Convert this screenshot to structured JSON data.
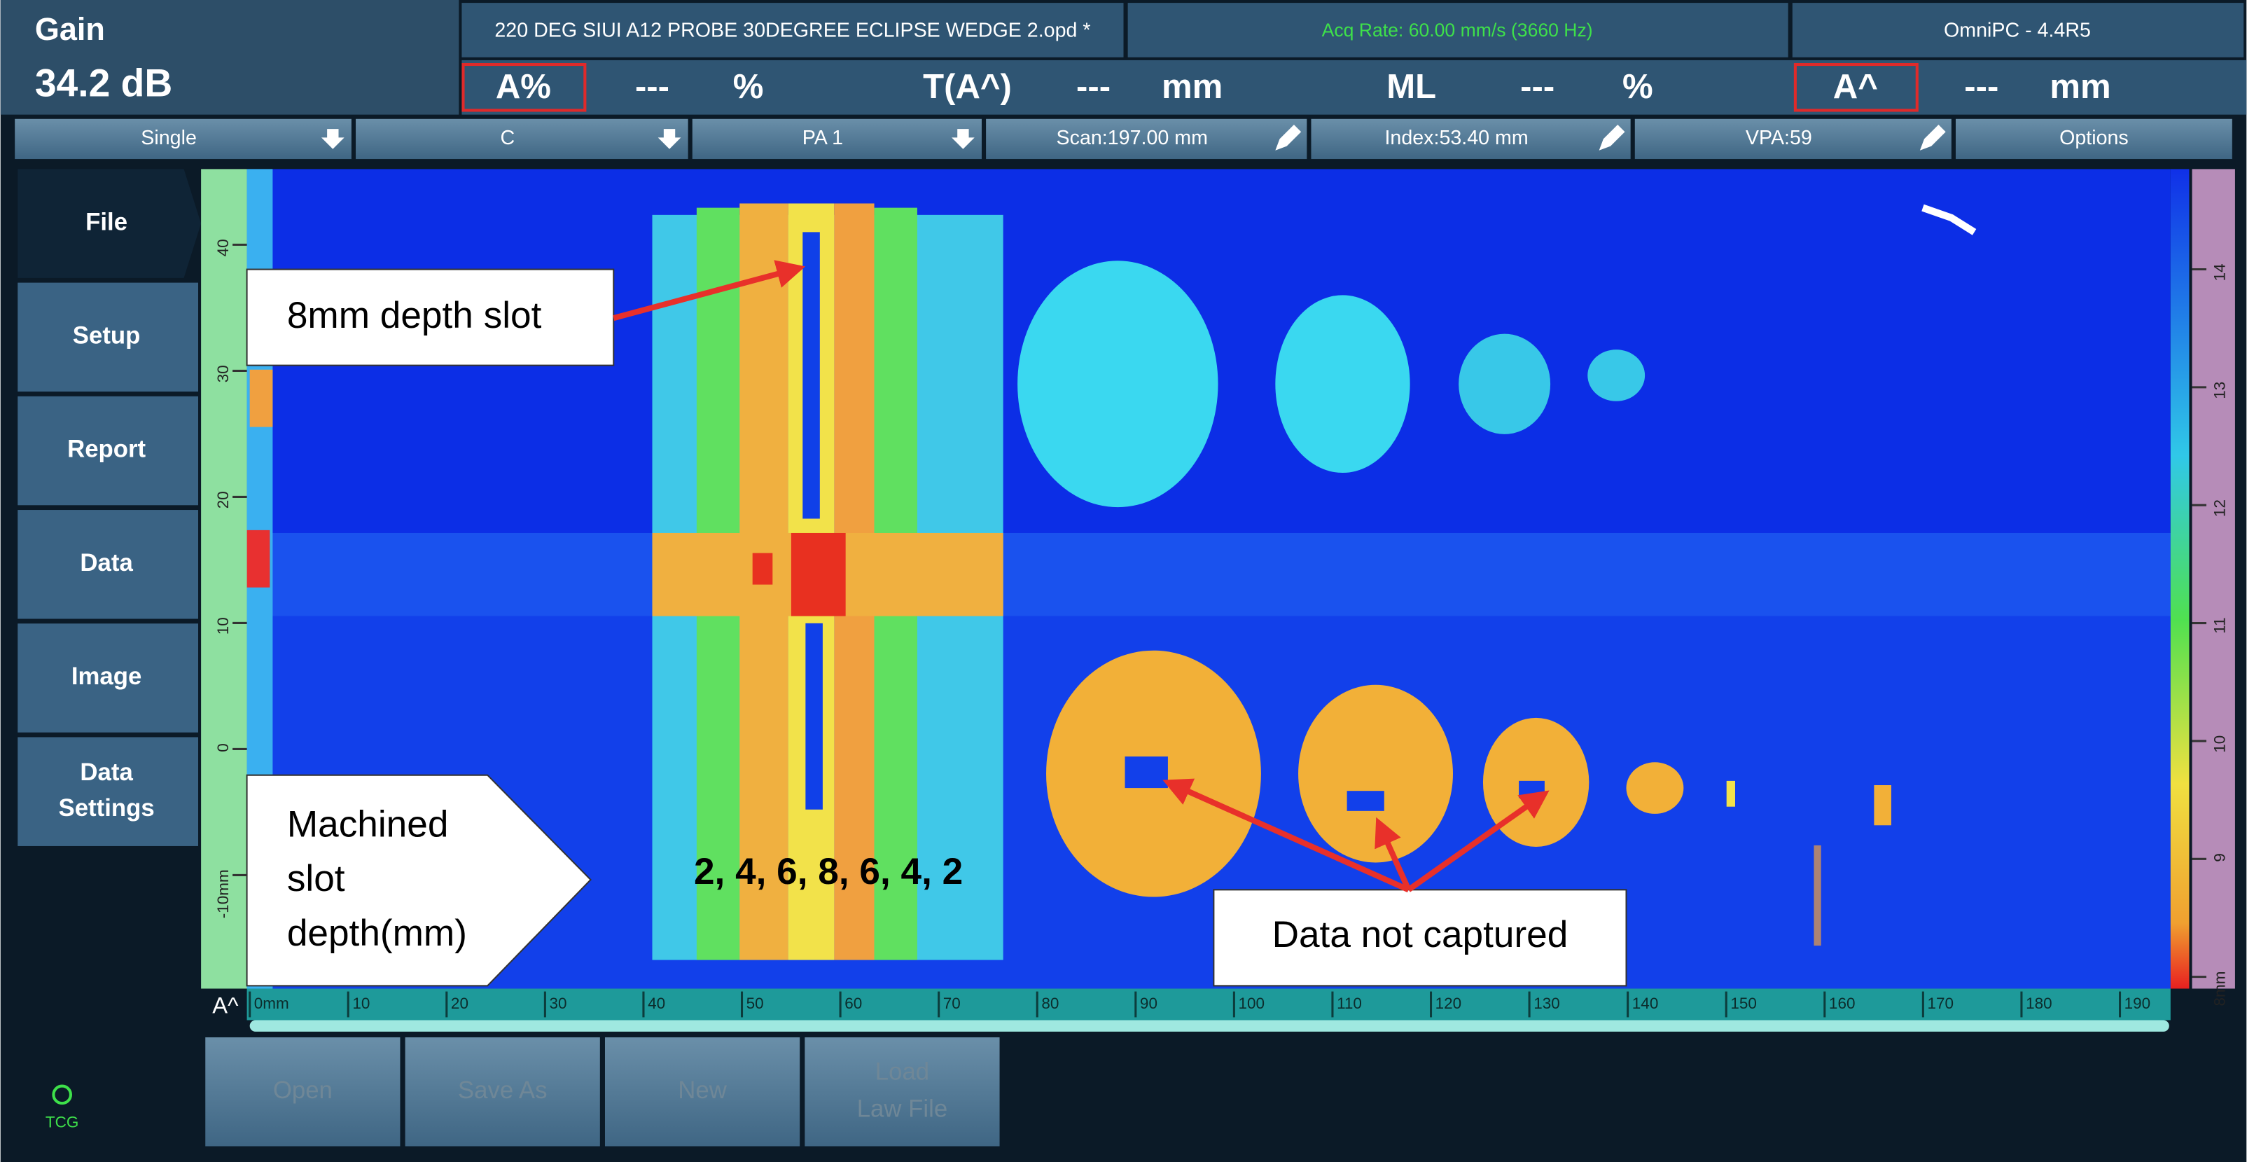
{
  "header": {
    "gain_label": "Gain",
    "gain_value": "34.2 dB",
    "file_name": "220 DEG SIUI A12 PROBE 30DEGREE ECLIPSE WEDGE 2.opd *",
    "acq_rate": "Acq Rate: 60.00 mm/s (3660 Hz)",
    "version": "OmniPC - 4.4R5"
  },
  "readings": [
    [
      "A%",
      "---",
      "%"
    ],
    [
      "T(A^)",
      "---",
      "mm"
    ],
    [
      "ML",
      "---",
      "%"
    ],
    [
      "A^",
      "---",
      "mm"
    ]
  ],
  "toolbar": [
    "Single",
    "C",
    "PA 1",
    "Scan:197.00 mm",
    "Index:53.40 mm",
    "VPA:59",
    "Options"
  ],
  "side_menu": [
    "File",
    "Setup",
    "Report",
    "Data",
    "Image",
    [
      "Data",
      "Settings"
    ]
  ],
  "bottom_buttons": [
    "Open",
    "Save As",
    "New",
    [
      "Load",
      "Law File"
    ]
  ],
  "status": {
    "tcg": "TCG"
  },
  "cscan": {
    "amplitude_label": "A^",
    "scan_axis": {
      "lim": [
        0,
        195
      ],
      "ticks": [
        {
          "value": 0,
          "label": "0mm"
        },
        10,
        20,
        30,
        40,
        50,
        60,
        70,
        80,
        90,
        100,
        110,
        120,
        130,
        140,
        150,
        160,
        170,
        180,
        190
      ]
    },
    "index_axis": {
      "lim": [
        -19,
        46
      ],
      "ticks": [
        40,
        30,
        20,
        10,
        0,
        {
          "value": -10,
          "label": "-10mm"
        }
      ]
    },
    "depth_axis": {
      "lim": [
        7.9,
        14.85
      ],
      "ticks": [
        14,
        13,
        12,
        11,
        10,
        9,
        {
          "value": 8,
          "label": "8mm"
        }
      ]
    }
  },
  "annotations": {
    "slot": "8mm depth slot",
    "machined": [
      "Machined",
      "slot",
      "depth(mm)"
    ],
    "depths": "2, 4, 6, 8, 6, 4, 2",
    "not_captured": "Data not captured"
  }
}
